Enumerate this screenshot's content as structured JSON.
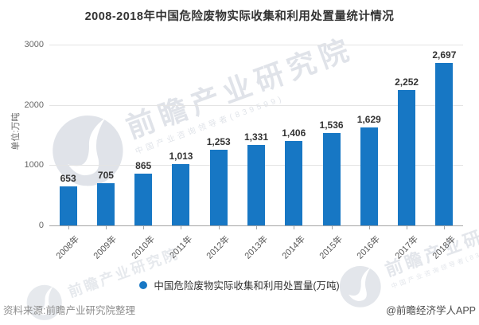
{
  "chart": {
    "title": "2008-2018年中国危险废物实际收集和利用处置量统计情况",
    "unit_label": "单位:万吨",
    "legend_label": "中国危险废物实际收集和利用处置量(万吨)",
    "accent_color": "#1777c4"
  },
  "chart_data": {
    "type": "bar",
    "title": "2008-2018年中国危险废物实际收集和利用处置量统计情况",
    "categories": [
      "2008年",
      "2009年",
      "2010年",
      "2011年",
      "2012年",
      "2013年",
      "2014年",
      "2015年",
      "2016年",
      "2017年",
      "2018年"
    ],
    "values": [
      653,
      705,
      865,
      1013,
      1253,
      1331,
      1406,
      1536,
      1629,
      2252,
      2697
    ],
    "value_labels": [
      "653",
      "705",
      "865",
      "1,013",
      "1,253",
      "1,331",
      "1,406",
      "1,536",
      "1,629",
      "2,252",
      "2,697"
    ],
    "xlabel": "",
    "ylabel": "单位:万吨",
    "ylim": [
      0,
      3000
    ],
    "yticks": [
      0,
      1000,
      2000,
      3000
    ],
    "grid": true,
    "x_tick_rotation": -45,
    "legend": [
      "中国危险废物实际收集和利用处置量(万吨)"
    ],
    "legend_position": "bottom",
    "series_color": "#1777c4",
    "grid_color": "#e4e4e4",
    "axis_color": "#a6a6a6"
  },
  "footer": {
    "source": "资料来源:前瞻产业研究院整理",
    "credit": "@前瞻经济学人APP"
  },
  "watermark": {
    "brand": "前瞻产业研究院",
    "tagline": "中国产业咨询领导者(839599)"
  }
}
